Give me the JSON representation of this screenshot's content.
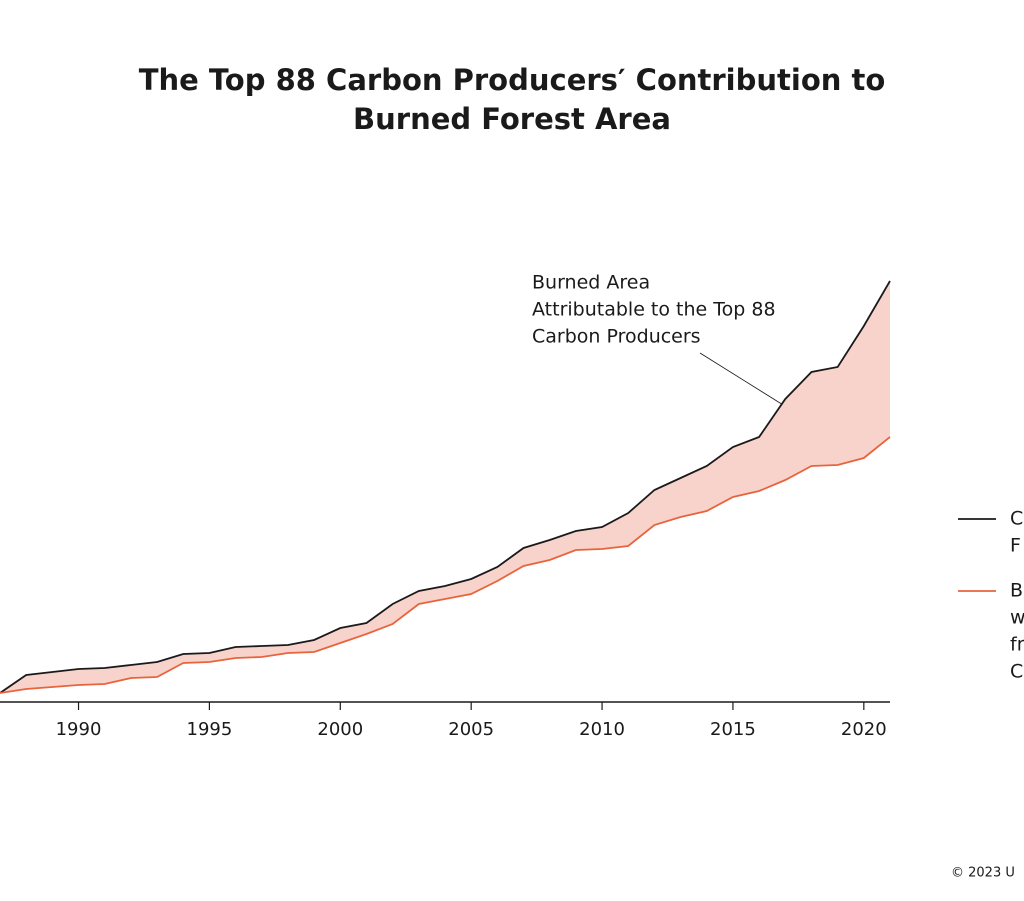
{
  "chart_data": {
    "type": "line",
    "title": [
      "The Top 88 Carbon Producers′ Contribution to",
      "Burned Forest Area"
    ],
    "annotation": [
      "Burned Area",
      "Attributable to the Top 88",
      "Carbon Producers"
    ],
    "x": [
      1987,
      1988,
      1989,
      1990,
      1991,
      1992,
      1993,
      1994,
      1995,
      1996,
      1997,
      1998,
      1999,
      2000,
      2001,
      2002,
      2003,
      2004,
      2005,
      2006,
      2007,
      2008,
      2009,
      2010,
      2011,
      2012,
      2013,
      2014,
      2015,
      2016,
      2017,
      2018,
      2019,
      2020,
      2021
    ],
    "xlim": [
      1987,
      2021
    ],
    "xticks": [
      1990,
      1995,
      2000,
      2005,
      2010,
      2015,
      2020
    ],
    "ylim": [
      0,
      421
    ],
    "fill_between": "#f8d3cc",
    "series": [
      {
        "name": [
          "C",
          "F"
        ],
        "color": "#1a1a1a",
        "values": [
          9,
          27,
          30,
          33,
          34,
          37,
          40,
          48,
          49,
          55,
          56,
          57,
          62,
          74,
          79,
          98,
          111,
          116,
          123,
          135,
          154,
          162,
          171,
          175,
          189,
          212,
          224,
          236,
          255,
          265,
          303,
          330,
          335,
          376,
          421
        ]
      },
      {
        "name": [
          "B",
          "w",
          "fr",
          "C"
        ],
        "color": "#e8643c",
        "values": [
          9,
          13,
          15,
          17,
          18,
          24,
          25,
          39,
          40,
          44,
          45,
          49,
          50,
          59,
          68,
          78,
          98,
          103,
          108,
          121,
          136,
          142,
          152,
          153,
          156,
          177,
          185,
          191,
          205,
          211,
          222,
          236,
          237,
          244,
          265
        ]
      }
    ],
    "footer": "© 2023 U"
  }
}
